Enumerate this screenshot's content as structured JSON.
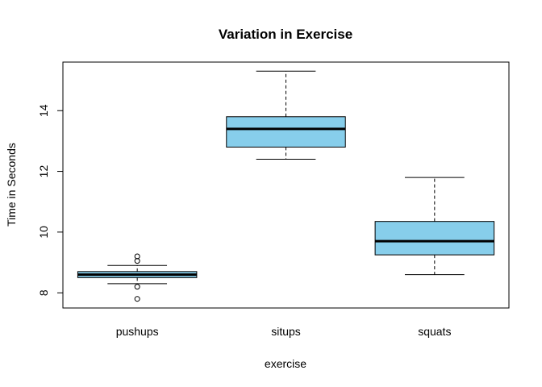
{
  "chart_data": {
    "type": "boxplot",
    "title": "Variation in Exercise",
    "xlabel": "exercise",
    "ylabel": "Time in Seconds",
    "ylim": [
      7.5,
      15.6
    ],
    "yticks": [
      8,
      10,
      12,
      14
    ],
    "box_fill": "#87CEEB",
    "categories": [
      "pushups",
      "situps",
      "squats"
    ],
    "boxes": [
      {
        "name": "pushups",
        "whisker_low": 8.3,
        "q1": 8.5,
        "median": 8.6,
        "q3": 8.7,
        "whisker_high": 8.9,
        "outliers": [
          9.2,
          9.05,
          8.2,
          7.8
        ]
      },
      {
        "name": "situps",
        "whisker_low": 12.4,
        "q1": 12.8,
        "median": 13.4,
        "q3": 13.8,
        "whisker_high": 15.3,
        "outliers": []
      },
      {
        "name": "squats",
        "whisker_low": 8.6,
        "q1": 9.25,
        "median": 9.7,
        "q3": 10.35,
        "whisker_high": 11.8,
        "outliers": []
      }
    ]
  }
}
